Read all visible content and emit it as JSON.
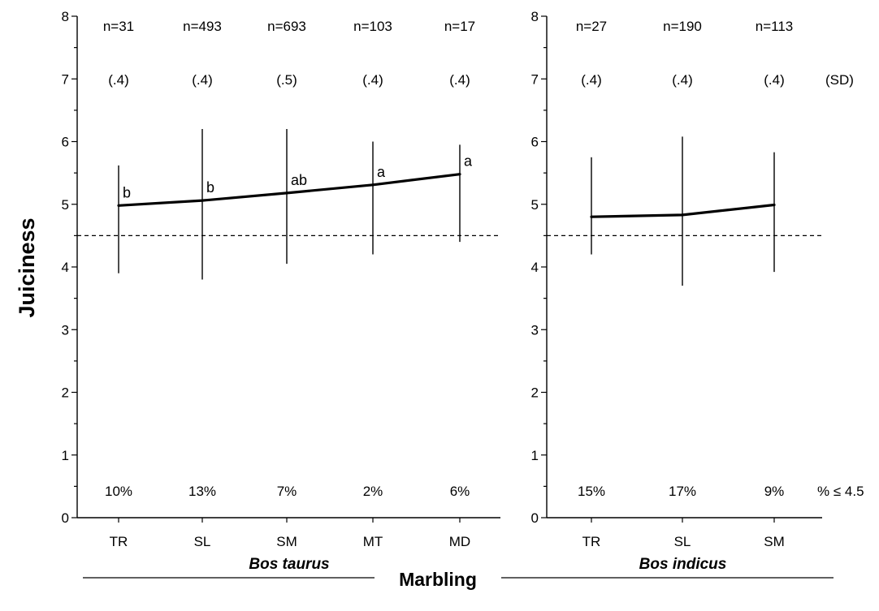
{
  "chart_data": [
    {
      "type": "line",
      "panel": "Bos taurus",
      "categories": [
        "TR",
        "SL",
        "SM",
        "MT",
        "MD"
      ],
      "values": [
        4.98,
        5.06,
        5.18,
        5.31,
        5.48
      ],
      "error_low": [
        3.9,
        3.8,
        4.05,
        4.2,
        4.4
      ],
      "error_high": [
        5.62,
        6.2,
        6.2,
        6.0,
        5.95
      ],
      "significance": [
        "b",
        "b",
        "ab",
        "a",
        "a"
      ],
      "n": [
        "n=31",
        "n=493",
        "n=693",
        "n=103",
        "n=17"
      ],
      "sd": [
        "(.4)",
        "(.4)",
        "(.5)",
        "(.4)",
        "(.4)"
      ],
      "pct_below": [
        "10%",
        "13%",
        "7%",
        "2%",
        "6%"
      ],
      "reference_line": 4.5,
      "ylim": [
        0,
        8
      ],
      "yticks": [
        "0",
        "1",
        "2",
        "3",
        "4",
        "5",
        "6",
        "7",
        "8"
      ],
      "ylabel": "Juiciness",
      "xlabel": "Bos taurus"
    },
    {
      "type": "line",
      "panel": "Bos indicus",
      "categories": [
        "TR",
        "SL",
        "SM"
      ],
      "values": [
        4.8,
        4.83,
        4.99
      ],
      "error_low": [
        4.2,
        3.7,
        3.92
      ],
      "error_high": [
        5.75,
        6.08,
        5.83
      ],
      "n": [
        "n=27",
        "n=190",
        "n=113"
      ],
      "sd": [
        "(.4)",
        "(.4)",
        "(.4)"
      ],
      "pct_below": [
        "15%",
        "17%",
        "9%"
      ],
      "reference_line": 4.5,
      "ylim": [
        0,
        8
      ],
      "yticks": [
        "0",
        "1",
        "2",
        "3",
        "4",
        "5",
        "6",
        "7",
        "8"
      ],
      "xlabel": "Bos indicus"
    }
  ],
  "labels": {
    "sd_tag": "(SD)",
    "pct_tag": "% ≤ 4.5",
    "marbling": "Marbling"
  }
}
